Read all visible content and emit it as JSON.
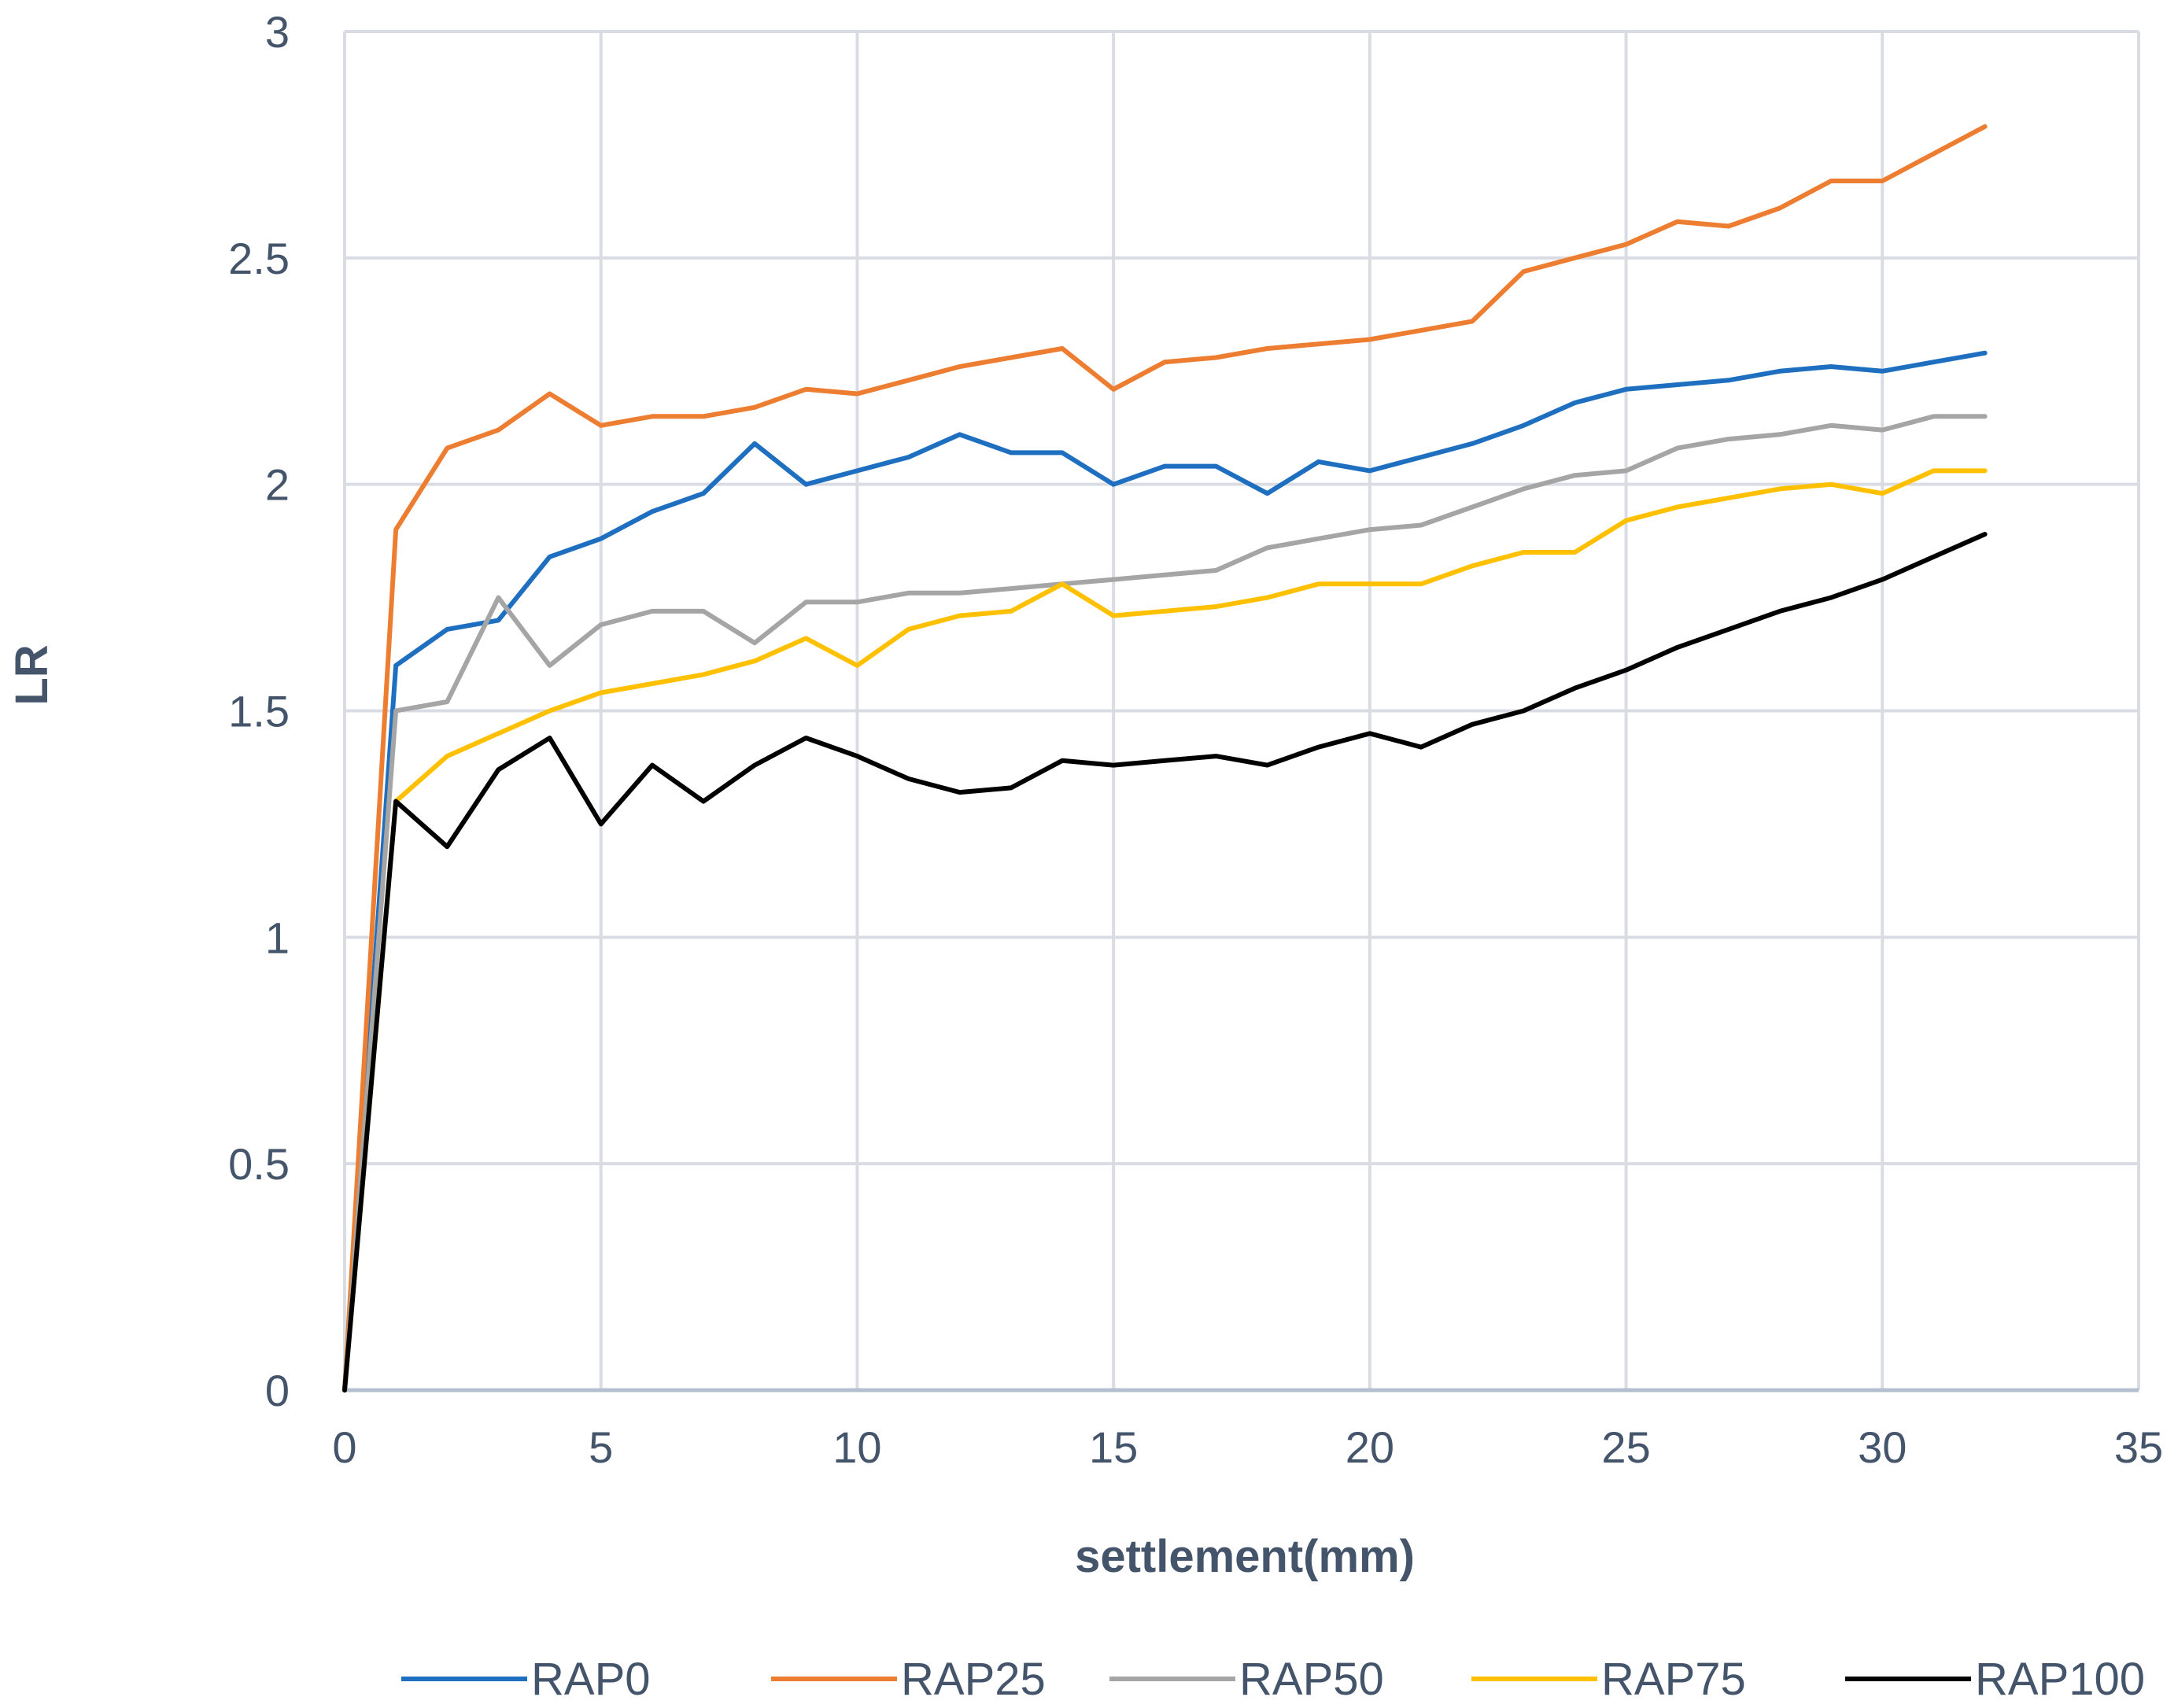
{
  "chart_data": {
    "type": "line",
    "title": "",
    "xlabel": "settlement(mm)",
    "ylabel": "LR",
    "xlim": [
      0,
      35
    ],
    "ylim": [
      0,
      3
    ],
    "xticks": [
      0,
      5,
      10,
      15,
      20,
      25,
      30,
      35
    ],
    "yticks": [
      0,
      0.5,
      1,
      1.5,
      2,
      2.5,
      3
    ],
    "xtick_labels": [
      "0",
      "5",
      "10",
      "15",
      "20",
      "25",
      "30",
      "35"
    ],
    "ytick_labels": [
      "0",
      "0.5",
      "1",
      "1.5",
      "2",
      "2.5",
      "3"
    ],
    "grid": true,
    "legend_position": "bottom",
    "x": [
      0,
      1,
      2,
      3,
      4,
      5,
      6,
      7,
      8,
      9,
      10,
      11,
      12,
      13,
      14,
      15,
      16,
      17,
      18,
      19,
      20,
      21,
      22,
      23,
      24,
      25,
      26,
      27,
      28,
      29,
      30,
      31,
      32
    ],
    "series": [
      {
        "name": "RAP0",
        "color": "#1f6fc0",
        "values": [
          0,
          1.6,
          1.68,
          1.7,
          1.84,
          1.88,
          1.94,
          1.98,
          2.09,
          2.0,
          2.03,
          2.06,
          2.11,
          2.07,
          2.07,
          2.0,
          2.04,
          2.04,
          1.98,
          2.05,
          2.03,
          2.06,
          2.09,
          2.13,
          2.18,
          2.21,
          2.22,
          2.23,
          2.25,
          2.26,
          2.25,
          2.27,
          2.29
        ]
      },
      {
        "name": "RAP25",
        "color": "#ed7d31",
        "values": [
          0,
          1.9,
          2.08,
          2.12,
          2.2,
          2.13,
          2.15,
          2.15,
          2.17,
          2.21,
          2.2,
          2.23,
          2.26,
          2.28,
          2.3,
          2.21,
          2.27,
          2.28,
          2.3,
          2.31,
          2.32,
          2.34,
          2.36,
          2.47,
          2.5,
          2.53,
          2.58,
          2.57,
          2.61,
          2.67,
          2.67,
          2.73,
          2.79
        ]
      },
      {
        "name": "RAP50",
        "color": "#a5a5a5",
        "values": [
          0,
          1.5,
          1.52,
          1.75,
          1.6,
          1.69,
          1.72,
          1.72,
          1.65,
          1.74,
          1.74,
          1.76,
          1.76,
          1.77,
          1.78,
          1.79,
          1.8,
          1.81,
          1.86,
          1.88,
          1.9,
          1.91,
          1.95,
          1.99,
          2.02,
          2.03,
          2.08,
          2.1,
          2.11,
          2.13,
          2.12,
          2.15,
          2.15
        ]
      },
      {
        "name": "RAP75",
        "color": "#ffc000",
        "values": [
          0,
          1.3,
          1.4,
          1.45,
          1.5,
          1.54,
          1.56,
          1.58,
          1.61,
          1.66,
          1.6,
          1.68,
          1.71,
          1.72,
          1.78,
          1.71,
          1.72,
          1.73,
          1.75,
          1.78,
          1.78,
          1.78,
          1.82,
          1.85,
          1.85,
          1.92,
          1.95,
          1.97,
          1.99,
          2.0,
          1.98,
          2.03,
          2.03
        ]
      },
      {
        "name": "RAP100",
        "color": "#000000",
        "values": [
          0,
          1.3,
          1.2,
          1.37,
          1.44,
          1.25,
          1.38,
          1.3,
          1.38,
          1.44,
          1.4,
          1.35,
          1.32,
          1.33,
          1.39,
          1.38,
          1.39,
          1.4,
          1.38,
          1.42,
          1.45,
          1.42,
          1.47,
          1.5,
          1.55,
          1.59,
          1.64,
          1.68,
          1.72,
          1.75,
          1.79,
          1.84,
          1.89
        ]
      }
    ]
  }
}
